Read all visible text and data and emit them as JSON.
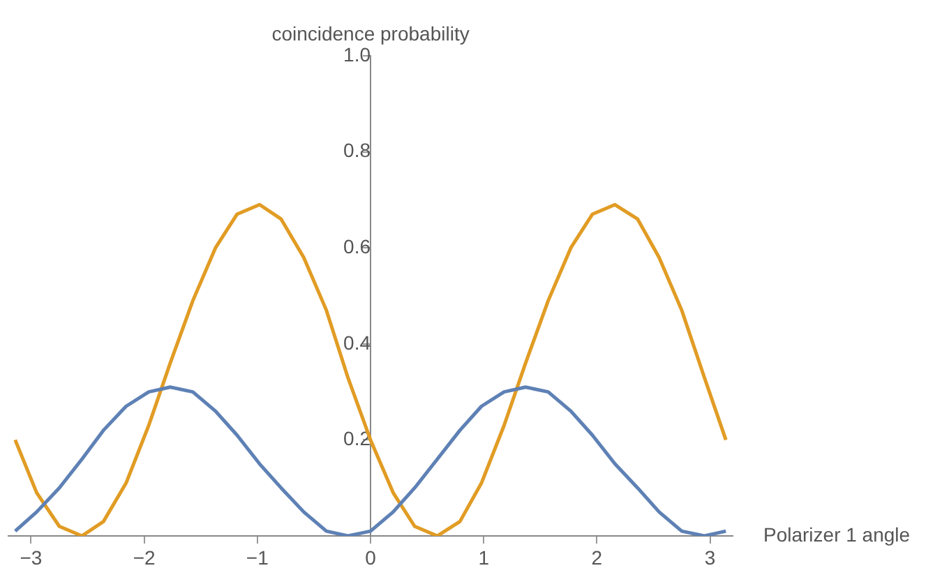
{
  "chart_data": {
    "type": "line",
    "xlabel": "Polarizer 1 angle",
    "ylabel": "coincidence probability",
    "x": [
      -3.14,
      -2.95,
      -2.75,
      -2.55,
      -2.36,
      -2.16,
      -1.96,
      -1.77,
      -1.57,
      -1.37,
      -1.18,
      -0.98,
      -0.79,
      -0.59,
      -0.39,
      -0.2,
      0,
      0.2,
      0.39,
      0.59,
      0.79,
      0.98,
      1.18,
      1.37,
      1.57,
      1.77,
      1.96,
      2.16,
      2.36,
      2.55,
      2.75,
      2.95,
      3.14
    ],
    "series": [
      {
        "color": "#5e81b5",
        "values": [
          0.01,
          0.05,
          0.1,
          0.16,
          0.22,
          0.27,
          0.3,
          0.31,
          0.3,
          0.26,
          0.21,
          0.15,
          0.1,
          0.05,
          0.01,
          0,
          0.01,
          0.05,
          0.1,
          0.16,
          0.22,
          0.27,
          0.3,
          0.31,
          0.3,
          0.26,
          0.21,
          0.15,
          0.1,
          0.05,
          0.01,
          0,
          0.01
        ]
      },
      {
        "color": "#e19c24",
        "values": [
          0.2,
          0.09,
          0.02,
          0,
          0.03,
          0.11,
          0.23,
          0.36,
          0.49,
          0.6,
          0.67,
          0.69,
          0.66,
          0.58,
          0.47,
          0.33,
          0.2,
          0.09,
          0.02,
          0,
          0.03,
          0.11,
          0.23,
          0.36,
          0.49,
          0.6,
          0.67,
          0.69,
          0.66,
          0.58,
          0.47,
          0.33,
          0.2
        ]
      }
    ],
    "xlim": [
      -3.2,
      3.2
    ],
    "ylim": [
      0,
      1
    ],
    "xticks": [
      {
        "value": -3,
        "label": "−3"
      },
      {
        "value": -2,
        "label": "−2"
      },
      {
        "value": -1,
        "label": "−1"
      },
      0,
      1,
      2,
      3
    ],
    "yticks": [
      0.2,
      0.4,
      0.6,
      0.8,
      {
        "value": 1,
        "label": "1.0"
      }
    ],
    "grid": false,
    "legend": false,
    "marker": "none",
    "line_style": "solid"
  }
}
